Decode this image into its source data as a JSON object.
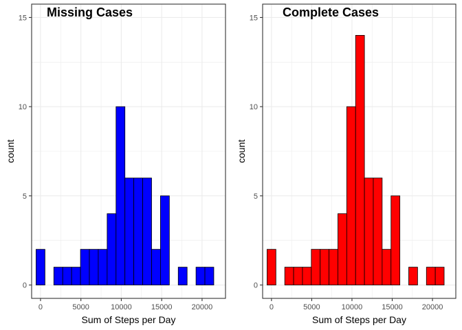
{
  "chart_data": [
    {
      "type": "bar",
      "title": "Missing Cases",
      "xlabel": "Sum of Steps per Day",
      "ylabel": "count",
      "fill": "#0000FF",
      "outline": "#000000",
      "xlim": [
        -1100,
        22900
      ],
      "ylim": [
        -0.75,
        15.75
      ],
      "x_ticks": [
        0,
        5000,
        10000,
        15000,
        20000
      ],
      "x_tick_labels": [
        "0",
        "5000",
        "10000",
        "15000",
        "20000"
      ],
      "y_ticks": [
        0,
        5,
        10,
        15
      ],
      "y_tick_labels": [
        "0",
        "5",
        "10",
        "15"
      ],
      "bin_width": 1100,
      "bin_centers": [
        0,
        1100,
        2200,
        3300,
        4400,
        5500,
        6600,
        7700,
        8800,
        9900,
        11000,
        12100,
        13200,
        14300,
        15400,
        16500,
        17600,
        18700,
        19800,
        20900
      ],
      "values": [
        2,
        0,
        1,
        1,
        1,
        2,
        2,
        2,
        4,
        10,
        6,
        6,
        6,
        2,
        5,
        0,
        1,
        0,
        1,
        1
      ],
      "grid": true
    },
    {
      "type": "bar",
      "title": "Complete Cases",
      "xlabel": "Sum of Steps per Day",
      "ylabel": "count",
      "fill": "#FF0000",
      "outline": "#000000",
      "xlim": [
        -1100,
        22900
      ],
      "ylim": [
        -0.75,
        15.75
      ],
      "x_ticks": [
        0,
        5000,
        10000,
        15000,
        20000
      ],
      "x_tick_labels": [
        "0",
        "5000",
        "10000",
        "15000",
        "20000"
      ],
      "y_ticks": [
        0,
        5,
        10,
        15
      ],
      "y_tick_labels": [
        "0",
        "5",
        "10",
        "15"
      ],
      "bin_width": 1100,
      "bin_centers": [
        0,
        1100,
        2200,
        3300,
        4400,
        5500,
        6600,
        7700,
        8800,
        9900,
        11000,
        12100,
        13200,
        14300,
        15400,
        16500,
        17600,
        18700,
        19800,
        20900
      ],
      "values": [
        2,
        0,
        1,
        1,
        1,
        2,
        2,
        2,
        4,
        10,
        14,
        6,
        6,
        2,
        5,
        0,
        1,
        0,
        1,
        1
      ],
      "grid": true
    }
  ],
  "colors": {
    "grid": "#EBEBEB",
    "panel_border": "#333333",
    "tick_text": "#4D4D4D"
  }
}
